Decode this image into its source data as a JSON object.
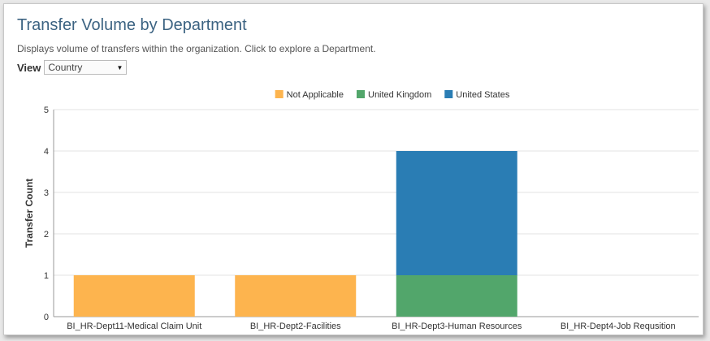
{
  "header": {
    "title": "Transfer Volume by Department",
    "subtitle": "Displays volume of transfers within the organization. Click to explore a Department."
  },
  "view": {
    "label": "View",
    "selected": "Country"
  },
  "colors": {
    "Not Applicable": "#fdb44e",
    "United Kingdom": "#52a66b",
    "United States": "#2a7db4",
    "grid": "#e3e3e3",
    "axis": "#999999",
    "text": "#333333"
  },
  "chart_data": {
    "type": "bar",
    "stacked": true,
    "title": "",
    "xlabel": "",
    "ylabel": "Transfer Count",
    "ylim": [
      0,
      5
    ],
    "yticks": [
      0,
      1,
      2,
      3,
      4,
      5
    ],
    "legend_position": "top-center",
    "categories": [
      "BI_HR-Dept11-Medical Claim Unit",
      "BI_HR-Dept2-Facilities",
      "BI_HR-Dept3-Human Resources",
      "BI_HR-Dept4-Job Requsition"
    ],
    "series": [
      {
        "name": "Not Applicable",
        "values": [
          1,
          1,
          0,
          0
        ]
      },
      {
        "name": "United Kingdom",
        "values": [
          0,
          0,
          1,
          0
        ]
      },
      {
        "name": "United States",
        "values": [
          0,
          0,
          3,
          0
        ]
      }
    ]
  }
}
